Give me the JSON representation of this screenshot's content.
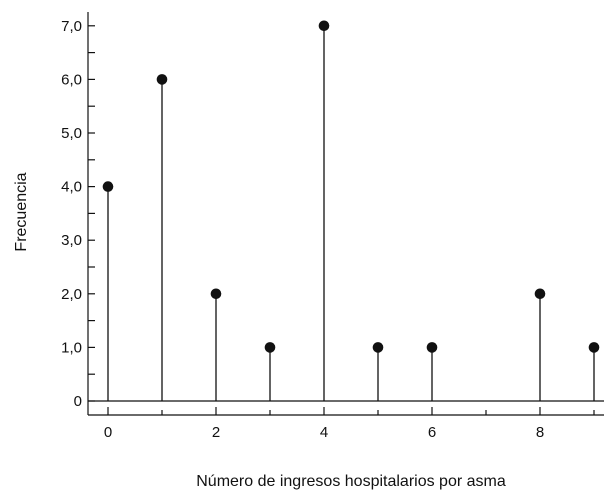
{
  "chart_data": {
    "type": "stem",
    "title": "",
    "xlabel": "Número de ingresos hospitalarios por asma",
    "ylabel": "Frecuencia",
    "x": [
      0,
      1,
      2,
      3,
      4,
      5,
      6,
      8,
      9
    ],
    "values": [
      4,
      6,
      2,
      1,
      7,
      1,
      1,
      2,
      1
    ],
    "xlim": [
      -0.4,
      9.3
    ],
    "ylim": [
      -0.25,
      7.3
    ],
    "x_ticks": [
      0,
      2,
      4,
      6,
      8
    ],
    "x_tick_labels": [
      "0",
      "2",
      "4",
      "6",
      "8"
    ],
    "y_ticks": [
      0,
      1,
      2,
      3,
      4,
      5,
      6,
      7
    ],
    "y_tick_labels": [
      "0",
      "1,0",
      "2,0",
      "3,0",
      "4,0",
      "5,0",
      "6,0",
      "7,0"
    ],
    "y_minor_step": 0.5,
    "x_minor_step": 1,
    "grid": false,
    "legend": "none",
    "colors": {
      "marker": "#111111",
      "line": "#111111",
      "axis": "#111111"
    }
  }
}
